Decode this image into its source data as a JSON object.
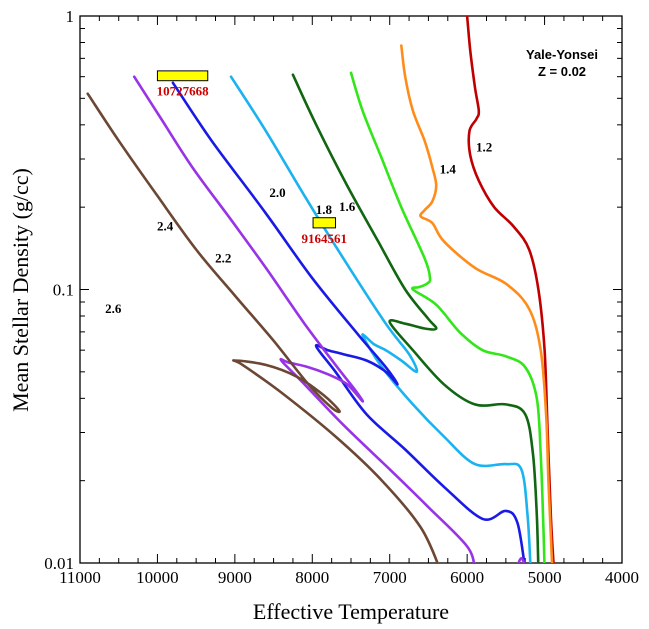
{
  "chart_data": {
    "type": "line",
    "xlabel": "Effective Temperature",
    "ylabel": "Mean Stellar Density (g/cc)",
    "xlim": [
      11000,
      4000
    ],
    "ylim": [
      0.01,
      1
    ],
    "y_scale": "log",
    "x_ticks": [
      "11000",
      "10000",
      "9000",
      "8000",
      "7000",
      "6000",
      "5000",
      "4000"
    ],
    "x_tick_values": [
      11000,
      10000,
      9000,
      8000,
      7000,
      6000,
      5000,
      4000
    ],
    "y_ticks": [
      "0.01",
      "0.1",
      "1"
    ],
    "y_tick_values": [
      0.01,
      0.1,
      1
    ],
    "annotation": [
      "Yale-Yonsei",
      "Z = 0.02"
    ],
    "series": [
      {
        "name": "1.2",
        "color": "#c00000",
        "label_at": [
          5780,
          0.33
        ],
        "points": [
          [
            6000,
            1.0
          ],
          [
            5960,
            0.75
          ],
          [
            5900,
            0.55
          ],
          [
            5850,
            0.45
          ],
          [
            5880,
            0.42
          ],
          [
            5970,
            0.38
          ],
          [
            5960,
            0.31
          ],
          [
            5850,
            0.25
          ],
          [
            5650,
            0.2
          ],
          [
            5400,
            0.17
          ],
          [
            5200,
            0.14
          ],
          [
            5080,
            0.1
          ],
          [
            5000,
            0.06
          ],
          [
            4960,
            0.03
          ],
          [
            4920,
            0.015
          ],
          [
            4880,
            0.0095
          ]
        ]
      },
      {
        "name": "1.4",
        "color": "#ff8c1a",
        "label_at": [
          6250,
          0.275
        ],
        "points": [
          [
            6850,
            0.78
          ],
          [
            6800,
            0.6
          ],
          [
            6700,
            0.45
          ],
          [
            6550,
            0.35
          ],
          [
            6450,
            0.28
          ],
          [
            6400,
            0.24
          ],
          [
            6450,
            0.21
          ],
          [
            6550,
            0.195
          ],
          [
            6600,
            0.185
          ],
          [
            6450,
            0.175
          ],
          [
            6300,
            0.15
          ],
          [
            5900,
            0.12
          ],
          [
            5500,
            0.105
          ],
          [
            5200,
            0.085
          ],
          [
            5050,
            0.06
          ],
          [
            4980,
            0.035
          ],
          [
            4950,
            0.02
          ],
          [
            4900,
            0.0095
          ]
        ]
      },
      {
        "name": "1.6",
        "color": "#33e61a",
        "label_at": [
          7550,
          0.2
        ],
        "points": [
          [
            7500,
            0.62
          ],
          [
            7350,
            0.45
          ],
          [
            7100,
            0.3
          ],
          [
            6850,
            0.2
          ],
          [
            6550,
            0.13
          ],
          [
            6480,
            0.11
          ],
          [
            6520,
            0.105
          ],
          [
            6620,
            0.102
          ],
          [
            6700,
            0.1
          ],
          [
            6400,
            0.088
          ],
          [
            6100,
            0.07
          ],
          [
            5800,
            0.06
          ],
          [
            5500,
            0.057
          ],
          [
            5250,
            0.052
          ],
          [
            5100,
            0.04
          ],
          [
            5050,
            0.025
          ],
          [
            5020,
            0.015
          ],
          [
            5000,
            0.0095
          ]
        ]
      },
      {
        "name": "1.8",
        "color": "#116611",
        "label_at": [
          7850,
          0.195
        ],
        "points": [
          [
            8250,
            0.61
          ],
          [
            7950,
            0.4
          ],
          [
            7550,
            0.24
          ],
          [
            7150,
            0.15
          ],
          [
            6800,
            0.1
          ],
          [
            6500,
            0.078
          ],
          [
            6400,
            0.072
          ],
          [
            6550,
            0.072
          ],
          [
            6800,
            0.075
          ],
          [
            7000,
            0.076
          ],
          [
            6700,
            0.06
          ],
          [
            6300,
            0.045
          ],
          [
            5900,
            0.038
          ],
          [
            5500,
            0.038
          ],
          [
            5250,
            0.035
          ],
          [
            5150,
            0.025
          ],
          [
            5100,
            0.015
          ],
          [
            5080,
            0.0095
          ]
        ]
      },
      {
        "name": "2.0",
        "color": "#1ab3f0",
        "label_at": [
          8450,
          0.225
        ],
        "points": [
          [
            9050,
            0.6
          ],
          [
            8600,
            0.38
          ],
          [
            8100,
            0.22
          ],
          [
            7600,
            0.13
          ],
          [
            7050,
            0.075
          ],
          [
            6750,
            0.058
          ],
          [
            6650,
            0.05
          ],
          [
            6850,
            0.055
          ],
          [
            7050,
            0.06
          ],
          [
            7200,
            0.063
          ],
          [
            7350,
            0.068
          ],
          [
            7100,
            0.052
          ],
          [
            6700,
            0.038
          ],
          [
            6300,
            0.029
          ],
          [
            5900,
            0.023
          ],
          [
            5500,
            0.023
          ],
          [
            5300,
            0.022
          ],
          [
            5220,
            0.015
          ],
          [
            5180,
            0.0095
          ]
        ]
      },
      {
        "name": "2.2",
        "color": "#1a1ae6",
        "label_at": [
          9150,
          0.13
        ],
        "points": [
          [
            9800,
            0.57
          ],
          [
            9300,
            0.35
          ],
          [
            8600,
            0.19
          ],
          [
            8000,
            0.11
          ],
          [
            7400,
            0.068
          ],
          [
            7050,
            0.052
          ],
          [
            6900,
            0.045
          ],
          [
            7050,
            0.05
          ],
          [
            7300,
            0.055
          ],
          [
            7600,
            0.058
          ],
          [
            7800,
            0.06
          ],
          [
            7950,
            0.062
          ],
          [
            7700,
            0.05
          ],
          [
            7300,
            0.035
          ],
          [
            6800,
            0.026
          ],
          [
            6300,
            0.019
          ],
          [
            5800,
            0.0145
          ],
          [
            5500,
            0.0155
          ],
          [
            5350,
            0.014
          ],
          [
            5250,
            0.0095
          ]
        ]
      },
      {
        "name": "2.4",
        "color": "#9933e6",
        "label_at": [
          9900,
          0.17
        ],
        "points": [
          [
            10300,
            0.6
          ],
          [
            9950,
            0.42
          ],
          [
            9550,
            0.28
          ],
          [
            9050,
            0.18
          ],
          [
            8600,
            0.12
          ],
          [
            8100,
            0.075
          ],
          [
            7700,
            0.053
          ],
          [
            7450,
            0.043
          ],
          [
            7350,
            0.039
          ],
          [
            7550,
            0.045
          ],
          [
            7800,
            0.049
          ],
          [
            8050,
            0.052
          ],
          [
            8300,
            0.054
          ],
          [
            8400,
            0.055
          ],
          [
            8100,
            0.045
          ],
          [
            7600,
            0.032
          ],
          [
            7000,
            0.022
          ],
          [
            6500,
            0.016
          ],
          [
            6000,
            0.0115
          ],
          [
            5900,
            0.0095
          ]
        ]
      },
      {
        "name": "2.6",
        "color": "#6b4734",
        "label_at": [
          10570,
          0.085
        ],
        "points": [
          [
            10900,
            0.52
          ],
          [
            10500,
            0.35
          ],
          [
            10000,
            0.22
          ],
          [
            9500,
            0.14
          ],
          [
            9000,
            0.095
          ],
          [
            8500,
            0.065
          ],
          [
            8050,
            0.045
          ],
          [
            7750,
            0.037
          ],
          [
            7650,
            0.036
          ],
          [
            7850,
            0.041
          ],
          [
            8200,
            0.048
          ],
          [
            8600,
            0.053
          ],
          [
            9000,
            0.055
          ],
          [
            8900,
            0.053
          ],
          [
            8400,
            0.042
          ],
          [
            7700,
            0.029
          ],
          [
            7100,
            0.02
          ],
          [
            6600,
            0.0135
          ],
          [
            6350,
            0.0095
          ]
        ]
      }
    ],
    "highlight_boxes": [
      {
        "label": "10727668",
        "color": "#ffff00",
        "label_color": "#cc0000",
        "x": [
          9350,
          10000
        ],
        "y": [
          0.58,
          0.63
        ]
      },
      {
        "label": "9164561",
        "color": "#ffff00",
        "label_color": "#cc0000",
        "x": [
          7700,
          7990
        ],
        "y": [
          0.168,
          0.183
        ]
      }
    ],
    "extra_segments": [
      {
        "color": "#9933e6",
        "points": [
          [
            5250,
            0.0095
          ],
          [
            5270,
            0.0101
          ],
          [
            5300,
            0.0104
          ],
          [
            5330,
            0.0101
          ],
          [
            5350,
            0.0095
          ]
        ]
      }
    ]
  }
}
